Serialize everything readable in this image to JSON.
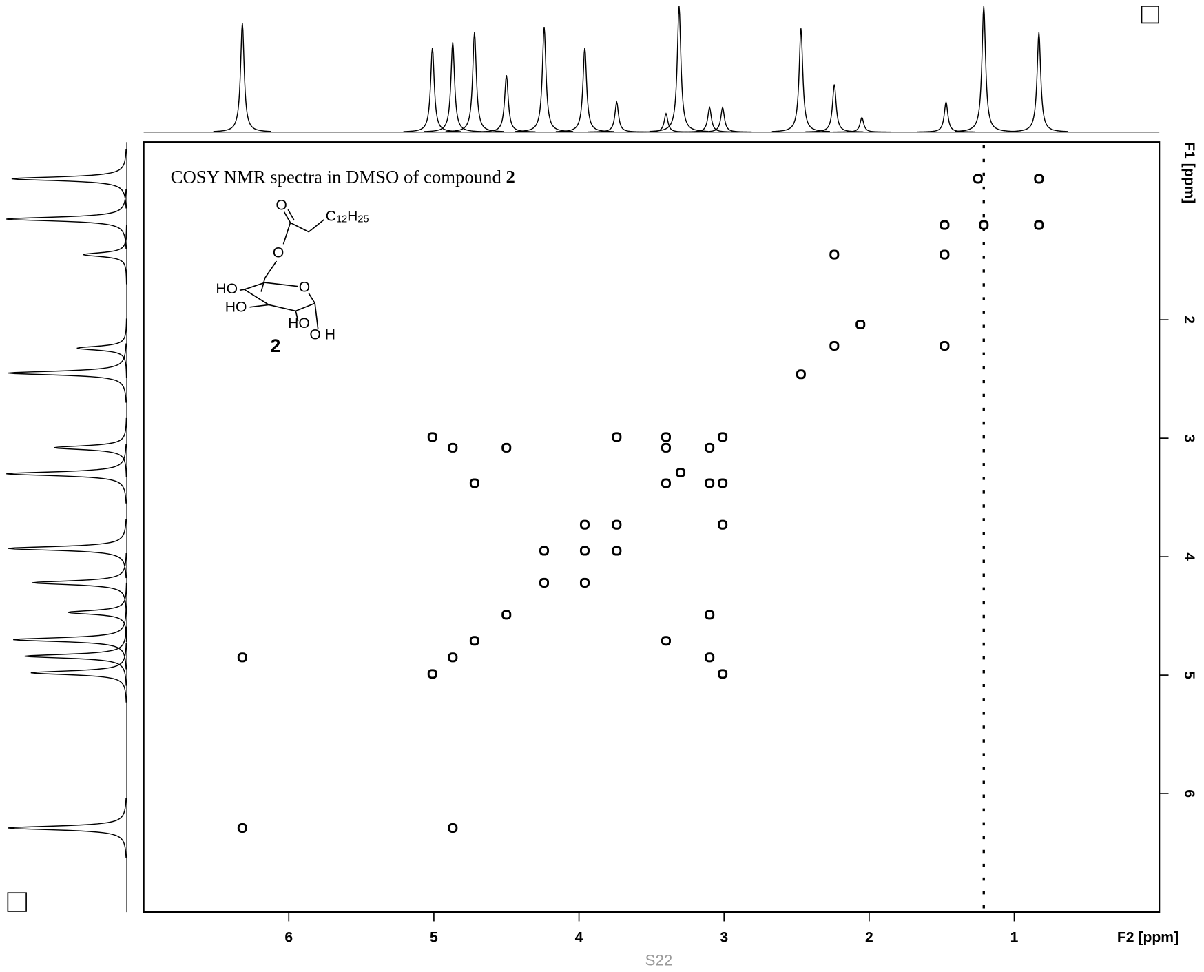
{
  "chart_data": {
    "type": "cosy",
    "title": "COSY NMR spectra in DMSO of compound ",
    "compound": "2",
    "xlabel": "F2 [ppm]",
    "ylabel": "F1 [ppm]",
    "xlim": [
      7.0,
      0.0
    ],
    "ylim": [
      0.5,
      7.0
    ],
    "xticks": [
      6,
      5,
      4,
      3,
      2,
      1
    ],
    "yticks": [
      2,
      3,
      4,
      5,
      6
    ],
    "color": "#000000",
    "f2_projection": {
      "ppm": [
        6.32,
        5.01,
        4.87,
        4.72,
        4.5,
        4.24,
        3.96,
        3.74,
        3.4,
        3.31,
        3.1,
        3.01,
        2.47,
        2.24,
        2.05,
        1.47,
        1.21,
        0.83
      ],
      "intensity": [
        142,
        110,
        117,
        130,
        74,
        137,
        110,
        39,
        24,
        164,
        32,
        32,
        135,
        62,
        19,
        39,
        164,
        130
      ]
    },
    "f1_projection": {
      "ppm": [
        0.81,
        1.15,
        1.45,
        2.24,
        2.45,
        3.08,
        3.3,
        3.93,
        4.22,
        4.47,
        4.7,
        4.84,
        4.98,
        6.29
      ],
      "intensity": [
        150,
        157,
        57,
        65,
        155,
        95,
        157,
        155,
        123,
        77,
        148,
        133,
        125,
        155
      ]
    },
    "cross_peaks": {
      "x": [
        1.25,
        0.83,
        1.48,
        1.21,
        0.83,
        2.24,
        1.48,
        2.06,
        2.24,
        1.48,
        2.47,
        5.01,
        4.87,
        4.5,
        3.74,
        3.4,
        3.4,
        3.1,
        3.01,
        3.3,
        4.72,
        3.4,
        3.1,
        3.01,
        3.96,
        3.74,
        3.01,
        4.24,
        3.96,
        3.74,
        4.24,
        3.96,
        4.5,
        3.1,
        4.72,
        3.4,
        6.32,
        4.87,
        3.1,
        5.01,
        3.01,
        6.32,
        4.87
      ],
      "y": [
        0.81,
        0.81,
        1.2,
        1.2,
        1.2,
        1.45,
        1.45,
        2.04,
        2.22,
        2.22,
        2.46,
        2.99,
        3.08,
        3.08,
        2.99,
        2.99,
        3.08,
        3.08,
        2.99,
        3.29,
        3.38,
        3.38,
        3.38,
        3.38,
        3.73,
        3.73,
        3.73,
        3.95,
        3.95,
        3.95,
        4.22,
        4.22,
        4.49,
        4.49,
        4.71,
        4.71,
        4.85,
        4.85,
        4.85,
        4.99,
        4.99,
        6.29,
        6.29
      ]
    },
    "t1_noise_ppm": 1.21
  },
  "structure": {
    "carbonyl_o": "O",
    "chain": [
      "C",
      "12",
      "H",
      "25"
    ],
    "ester_o": "O",
    "ring_o": "O",
    "ho4": "HO",
    "ho3": "HO",
    "ho2": "HO",
    "oh1": "O H",
    "number": "2"
  },
  "footer": "S22"
}
